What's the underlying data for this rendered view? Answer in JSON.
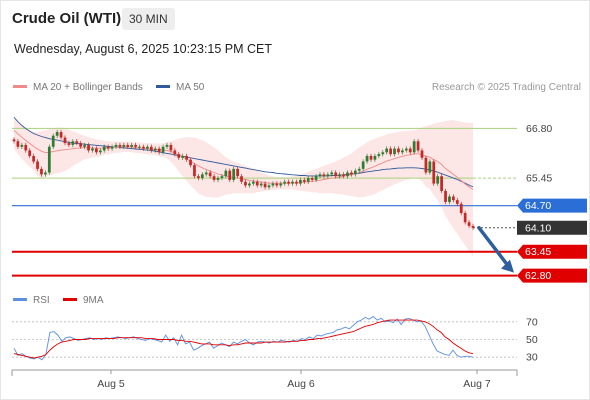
{
  "header": {
    "title": "Crude Oil (WTI)",
    "timeframe": "30 MIN",
    "datetime": "Wednesday, August 6, 2025 10:23:15 PM CET",
    "credit": "Research © 2025 Trading Central"
  },
  "colors": {
    "ma20": "#f08a8a",
    "ma50": "#2f5a9c",
    "band_fill": "#fde3e3",
    "up_candle": "#2e7d32",
    "down_candle": "#c62828",
    "green_level": "#a6d27a",
    "blue_level": "#2b6fd6",
    "red_level": "#e00000",
    "rsi": "#5b8fe0",
    "rsi_ma": "#e00000",
    "arrow": "#2d5f9e"
  },
  "chart_data": [
    {
      "type": "line",
      "panel": "price",
      "legend": [
        "MA 20 + Bollinger Bands",
        "MA 50"
      ],
      "x_tick_labels": [
        "Aug 5",
        "Aug 6",
        "Aug 7"
      ],
      "ylim": [
        62.6,
        67.0
      ],
      "levels": [
        {
          "value": 66.8,
          "label": "66.80",
          "kind": "resistance"
        },
        {
          "value": 65.45,
          "label": "65.45",
          "kind": "pivot"
        },
        {
          "value": 64.7,
          "label": "64.70",
          "kind": "pivot-blue"
        },
        {
          "value": 64.1,
          "label": "64.10",
          "kind": "last-price"
        },
        {
          "value": 63.45,
          "label": "63.45",
          "kind": "support"
        },
        {
          "value": 62.8,
          "label": "62.80",
          "kind": "support"
        }
      ],
      "close": [
        66.45,
        66.3,
        66.35,
        66.2,
        66.05,
        65.9,
        65.7,
        65.55,
        65.6,
        66.3,
        66.6,
        66.7,
        66.55,
        66.4,
        66.35,
        66.45,
        66.4,
        66.3,
        66.35,
        66.2,
        66.25,
        66.15,
        66.2,
        66.3,
        66.25,
        66.3,
        66.35,
        66.3,
        66.35,
        66.3,
        66.35,
        66.3,
        66.3,
        66.25,
        66.3,
        66.2,
        66.25,
        66.15,
        66.3,
        66.35,
        66.2,
        66.1,
        66.0,
        66.05,
        65.95,
        65.8,
        65.5,
        65.45,
        65.55,
        65.6,
        65.5,
        65.4,
        65.45,
        65.5,
        65.65,
        65.4,
        65.7,
        65.5,
        65.35,
        65.25,
        65.3,
        65.35,
        65.25,
        65.3,
        65.2,
        65.25,
        65.3,
        65.25,
        65.3,
        65.35,
        65.3,
        65.35,
        65.3,
        65.4,
        65.35,
        65.45,
        65.4,
        65.5,
        65.55,
        65.5,
        65.55,
        65.6,
        65.5,
        65.55,
        65.5,
        65.6,
        65.55,
        65.65,
        65.7,
        65.9,
        66.05,
        65.95,
        66.05,
        66.1,
        66.15,
        66.25,
        66.1,
        66.25,
        66.15,
        66.2,
        66.25,
        66.15,
        66.45,
        66.2,
        66.0,
        65.6,
        65.9,
        65.3,
        65.5,
        65.1,
        64.8,
        64.95,
        64.85,
        64.75,
        64.5,
        64.25,
        64.15,
        64.1
      ],
      "ma20": [
        66.75,
        66.65,
        66.56,
        66.47,
        66.39,
        66.31,
        66.24,
        66.18,
        66.14,
        66.15,
        66.17,
        66.19,
        66.21,
        66.22,
        66.23,
        66.25,
        66.26,
        66.27,
        66.28,
        66.27,
        66.27,
        66.26,
        66.26,
        66.27,
        66.27,
        66.28,
        66.29,
        66.29,
        66.3,
        66.3,
        66.29,
        66.28,
        66.27,
        66.26,
        66.25,
        66.24,
        66.23,
        66.22,
        66.21,
        66.2,
        66.17,
        66.13,
        66.07,
        66.02,
        65.97,
        65.91,
        65.84,
        65.78,
        65.73,
        65.68,
        65.64,
        65.6,
        65.56,
        65.53,
        65.51,
        65.48,
        65.47,
        65.45,
        65.43,
        65.41,
        65.39,
        65.37,
        65.36,
        65.34,
        65.33,
        65.32,
        65.31,
        65.31,
        65.31,
        65.31,
        65.31,
        65.32,
        65.32,
        65.33,
        65.34,
        65.35,
        65.36,
        65.38,
        65.39,
        65.41,
        65.43,
        65.45,
        65.46,
        65.48,
        65.5,
        65.52,
        65.54,
        65.57,
        65.6,
        65.64,
        65.69,
        65.73,
        65.77,
        65.82,
        65.86,
        65.91,
        65.94,
        65.98,
        66.01,
        66.04,
        66.07,
        66.08,
        66.11,
        66.11,
        66.09,
        66.04,
        66.02,
        65.95,
        65.9,
        65.82,
        65.71,
        65.63,
        65.55,
        65.47,
        65.38,
        65.29,
        65.21,
        65.14
      ],
      "upper_band": [
        67.05,
        66.98,
        66.9,
        66.82,
        66.75,
        66.7,
        66.7,
        66.72,
        66.75,
        66.78,
        66.8,
        66.82,
        66.82,
        66.8,
        66.76,
        66.72,
        66.68,
        66.64,
        66.6,
        66.56,
        66.53,
        66.5,
        66.48,
        66.46,
        66.45,
        66.44,
        66.44,
        66.44,
        66.44,
        66.44,
        66.43,
        66.42,
        66.42,
        66.41,
        66.4,
        66.4,
        66.39,
        66.39,
        66.4,
        66.42,
        66.45,
        66.48,
        66.52,
        66.54,
        66.56,
        66.56,
        66.55,
        66.52,
        66.48,
        66.42,
        66.35,
        66.28,
        66.2,
        66.1,
        66.02,
        65.95,
        65.9,
        65.86,
        65.82,
        65.78,
        65.74,
        65.7,
        65.65,
        65.6,
        65.56,
        65.52,
        65.5,
        65.48,
        65.48,
        65.48,
        65.48,
        65.5,
        65.52,
        65.55,
        65.58,
        65.62,
        65.66,
        65.7,
        65.74,
        65.78,
        65.82,
        65.86,
        65.9,
        65.95,
        66.0,
        66.06,
        66.12,
        66.2,
        66.28,
        66.35,
        66.42,
        66.48,
        66.52,
        66.56,
        66.6,
        66.64,
        66.66,
        66.68,
        66.7,
        66.72,
        66.73,
        66.74,
        66.75,
        66.78,
        66.82,
        66.86,
        66.89,
        66.92,
        66.95,
        66.98,
        67.0,
        67.02,
        67.02,
        67.0,
        66.98,
        66.96,
        66.95,
        66.95
      ],
      "lower_band": [
        66.25,
        66.1,
        65.98,
        65.86,
        65.76,
        65.66,
        65.52,
        65.45,
        65.48,
        65.52,
        65.55,
        65.58,
        65.6,
        65.64,
        65.7,
        65.78,
        65.84,
        65.9,
        65.96,
        65.98,
        66.01,
        66.02,
        66.04,
        66.08,
        66.09,
        66.12,
        66.14,
        66.14,
        66.16,
        66.16,
        66.15,
        66.14,
        66.12,
        66.11,
        66.1,
        66.08,
        66.07,
        66.05,
        66.02,
        65.98,
        65.89,
        65.78,
        65.62,
        65.5,
        65.38,
        65.26,
        65.13,
        65.04,
        64.98,
        64.94,
        64.93,
        64.92,
        64.92,
        64.96,
        65.0,
        65.01,
        65.04,
        65.04,
        65.04,
        65.04,
        65.04,
        65.04,
        65.07,
        65.08,
        65.1,
        65.12,
        65.12,
        65.14,
        65.14,
        65.14,
        65.14,
        65.14,
        65.12,
        65.11,
        65.1,
        65.08,
        65.06,
        65.06,
        65.04,
        65.04,
        65.04,
        65.04,
        65.02,
        65.01,
        65.0,
        64.98,
        64.96,
        64.94,
        64.92,
        64.93,
        64.96,
        64.98,
        65.02,
        65.08,
        65.12,
        65.18,
        65.22,
        65.28,
        65.32,
        65.36,
        65.41,
        65.42,
        65.47,
        65.44,
        65.36,
        65.22,
        65.15,
        64.98,
        64.85,
        64.66,
        64.42,
        64.24,
        64.08,
        63.94,
        63.78,
        63.62,
        63.47,
        63.33
      ],
      "ma50": [
        67.1,
        66.98,
        66.88,
        66.79,
        66.72,
        66.66,
        66.62,
        66.58,
        66.55,
        66.52,
        66.5,
        66.48,
        66.46,
        66.44,
        66.42,
        66.4,
        66.39,
        66.38,
        66.37,
        66.36,
        66.35,
        66.34,
        66.33,
        66.32,
        66.31,
        66.3,
        66.29,
        66.28,
        66.27,
        66.26,
        66.25,
        66.24,
        66.23,
        66.22,
        66.21,
        66.2,
        66.18,
        66.16,
        66.14,
        66.12,
        66.1,
        66.08,
        66.06,
        66.04,
        66.02,
        66.0,
        65.98,
        65.96,
        65.94,
        65.92,
        65.9,
        65.88,
        65.86,
        65.84,
        65.82,
        65.8,
        65.78,
        65.76,
        65.74,
        65.72,
        65.7,
        65.68,
        65.66,
        65.64,
        65.62,
        65.61,
        65.6,
        65.58,
        65.57,
        65.56,
        65.55,
        65.54,
        65.53,
        65.52,
        65.52,
        65.51,
        65.51,
        65.51,
        65.51,
        65.51,
        65.51,
        65.52,
        65.52,
        65.53,
        65.54,
        65.55,
        65.56,
        65.57,
        65.58,
        65.6,
        65.62,
        65.63,
        65.65,
        65.66,
        65.68,
        65.69,
        65.7,
        65.71,
        65.72,
        65.72,
        65.73,
        65.73,
        65.73,
        65.72,
        65.71,
        65.69,
        65.67,
        65.64,
        65.61,
        65.57,
        65.53,
        65.49,
        65.45,
        65.41,
        65.36,
        65.31,
        65.26,
        65.21
      ],
      "forecast_arrow": {
        "from": 64.1,
        "to": 62.8
      }
    },
    {
      "type": "line",
      "panel": "rsi",
      "legend": [
        "RSI",
        "9MA"
      ],
      "y_tick_labels": [
        "70",
        "50",
        "30"
      ],
      "ylim": [
        20,
        80
      ],
      "rsi": [
        40,
        32,
        34,
        31,
        29,
        28,
        30,
        27,
        33,
        58,
        59,
        55,
        48,
        52,
        53,
        51,
        49,
        50,
        51,
        52,
        50,
        51,
        50,
        52,
        51,
        52,
        53,
        52,
        51,
        52,
        53,
        51,
        50,
        49,
        51,
        50,
        49,
        47,
        55,
        48,
        52,
        44,
        55,
        45,
        47,
        38,
        40,
        43,
        45,
        47,
        40,
        43,
        46,
        44,
        42,
        47,
        45,
        48,
        50,
        46,
        44,
        47,
        48,
        47,
        46,
        48,
        47,
        49,
        48,
        47,
        49,
        48,
        51,
        50,
        53,
        51,
        55,
        54,
        56,
        57,
        58,
        61,
        62,
        64,
        62,
        66,
        70,
        72,
        75,
        73,
        76,
        72,
        74,
        70,
        71,
        69,
        73,
        67,
        73,
        74,
        72,
        70,
        71,
        65,
        55,
        45,
        37,
        35,
        33,
        32,
        38,
        32,
        30,
        31,
        31,
        30
      ],
      "ma9": [
        34,
        33,
        32,
        31,
        30,
        29,
        30,
        31,
        33,
        38,
        42,
        45,
        47,
        48,
        49,
        50,
        50,
        50,
        50,
        51,
        51,
        51,
        51,
        51,
        51,
        51,
        52,
        52,
        52,
        52,
        52,
        52,
        52,
        51,
        51,
        51,
        50,
        50,
        50,
        50,
        50,
        49,
        49,
        48,
        48,
        47,
        46,
        45,
        45,
        45,
        44,
        44,
        44,
        44,
        43,
        44,
        44,
        45,
        46,
        46,
        46,
        46,
        46,
        47,
        47,
        47,
        47,
        47,
        47,
        48,
        48,
        48,
        49,
        49,
        50,
        50,
        51,
        51,
        52,
        53,
        54,
        55,
        56,
        57,
        58,
        59,
        61,
        63,
        65,
        66,
        67,
        69,
        70,
        71,
        72,
        72,
        72,
        72,
        72,
        72,
        72,
        72,
        71,
        70,
        68,
        65,
        61,
        58,
        53,
        50,
        46,
        43,
        40,
        37,
        35,
        34
      ]
    }
  ]
}
